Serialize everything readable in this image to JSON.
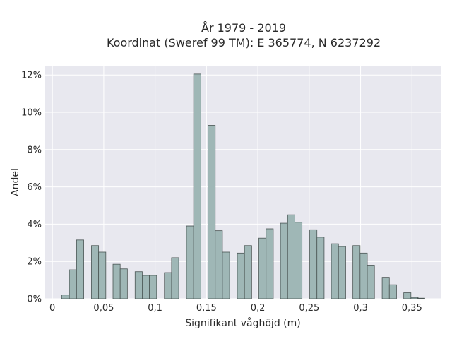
{
  "chart_data": {
    "type": "bar",
    "title_line1": "År 1979 - 2019",
    "title_line2": "Koordinat (Sweref 99 TM): E 365774, N 6237292",
    "xlabel": "Signifikant våghöjd (m)",
    "ylabel": "Andel",
    "xlim": [
      -0.007,
      0.378
    ],
    "ylim": [
      0,
      12.5
    ],
    "grid": true,
    "bin_width": 0.007,
    "x_ticks": [
      {
        "value": 0,
        "label": "0"
      },
      {
        "value": 0.05,
        "label": "0,05"
      },
      {
        "value": 0.1,
        "label": "0,1"
      },
      {
        "value": 0.15,
        "label": "0,15"
      },
      {
        "value": 0.2,
        "label": "0,2"
      },
      {
        "value": 0.25,
        "label": "0,25"
      },
      {
        "value": 0.3,
        "label": "0,3"
      },
      {
        "value": 0.35,
        "label": "0,35"
      }
    ],
    "y_ticks": [
      {
        "value": 0,
        "label": "0%"
      },
      {
        "value": 2,
        "label": "2%"
      },
      {
        "value": 4,
        "label": "4%"
      },
      {
        "value": 6,
        "label": "6%"
      },
      {
        "value": 8,
        "label": "8%"
      },
      {
        "value": 10,
        "label": "10%"
      },
      {
        "value": 12,
        "label": "12%"
      }
    ],
    "bars": [
      {
        "x": 0.0125,
        "value": 0.2
      },
      {
        "x": 0.02,
        "value": 1.55
      },
      {
        "x": 0.027,
        "value": 3.15
      },
      {
        "x": 0.0415,
        "value": 2.85
      },
      {
        "x": 0.0485,
        "value": 2.5
      },
      {
        "x": 0.0625,
        "value": 1.85
      },
      {
        "x": 0.0695,
        "value": 1.6
      },
      {
        "x": 0.084,
        "value": 1.45
      },
      {
        "x": 0.091,
        "value": 1.25
      },
      {
        "x": 0.098,
        "value": 1.25
      },
      {
        "x": 0.1125,
        "value": 1.4
      },
      {
        "x": 0.1195,
        "value": 2.2
      },
      {
        "x": 0.134,
        "value": 3.9
      },
      {
        "x": 0.141,
        "value": 12.05
      },
      {
        "x": 0.155,
        "value": 9.3
      },
      {
        "x": 0.162,
        "value": 3.65
      },
      {
        "x": 0.169,
        "value": 2.5
      },
      {
        "x": 0.1835,
        "value": 2.45
      },
      {
        "x": 0.1905,
        "value": 2.85
      },
      {
        "x": 0.2045,
        "value": 3.25
      },
      {
        "x": 0.2115,
        "value": 3.75
      },
      {
        "x": 0.2255,
        "value": 4.05
      },
      {
        "x": 0.2325,
        "value": 4.5
      },
      {
        "x": 0.2395,
        "value": 4.1
      },
      {
        "x": 0.254,
        "value": 3.7
      },
      {
        "x": 0.261,
        "value": 3.3
      },
      {
        "x": 0.275,
        "value": 2.95
      },
      {
        "x": 0.282,
        "value": 2.8
      },
      {
        "x": 0.296,
        "value": 2.85
      },
      {
        "x": 0.303,
        "value": 2.45
      },
      {
        "x": 0.31,
        "value": 1.8
      },
      {
        "x": 0.3245,
        "value": 1.15
      },
      {
        "x": 0.3315,
        "value": 0.75
      },
      {
        "x": 0.3455,
        "value": 0.32
      },
      {
        "x": 0.3525,
        "value": 0.07
      },
      {
        "x": 0.359,
        "value": 0.03
      }
    ]
  }
}
